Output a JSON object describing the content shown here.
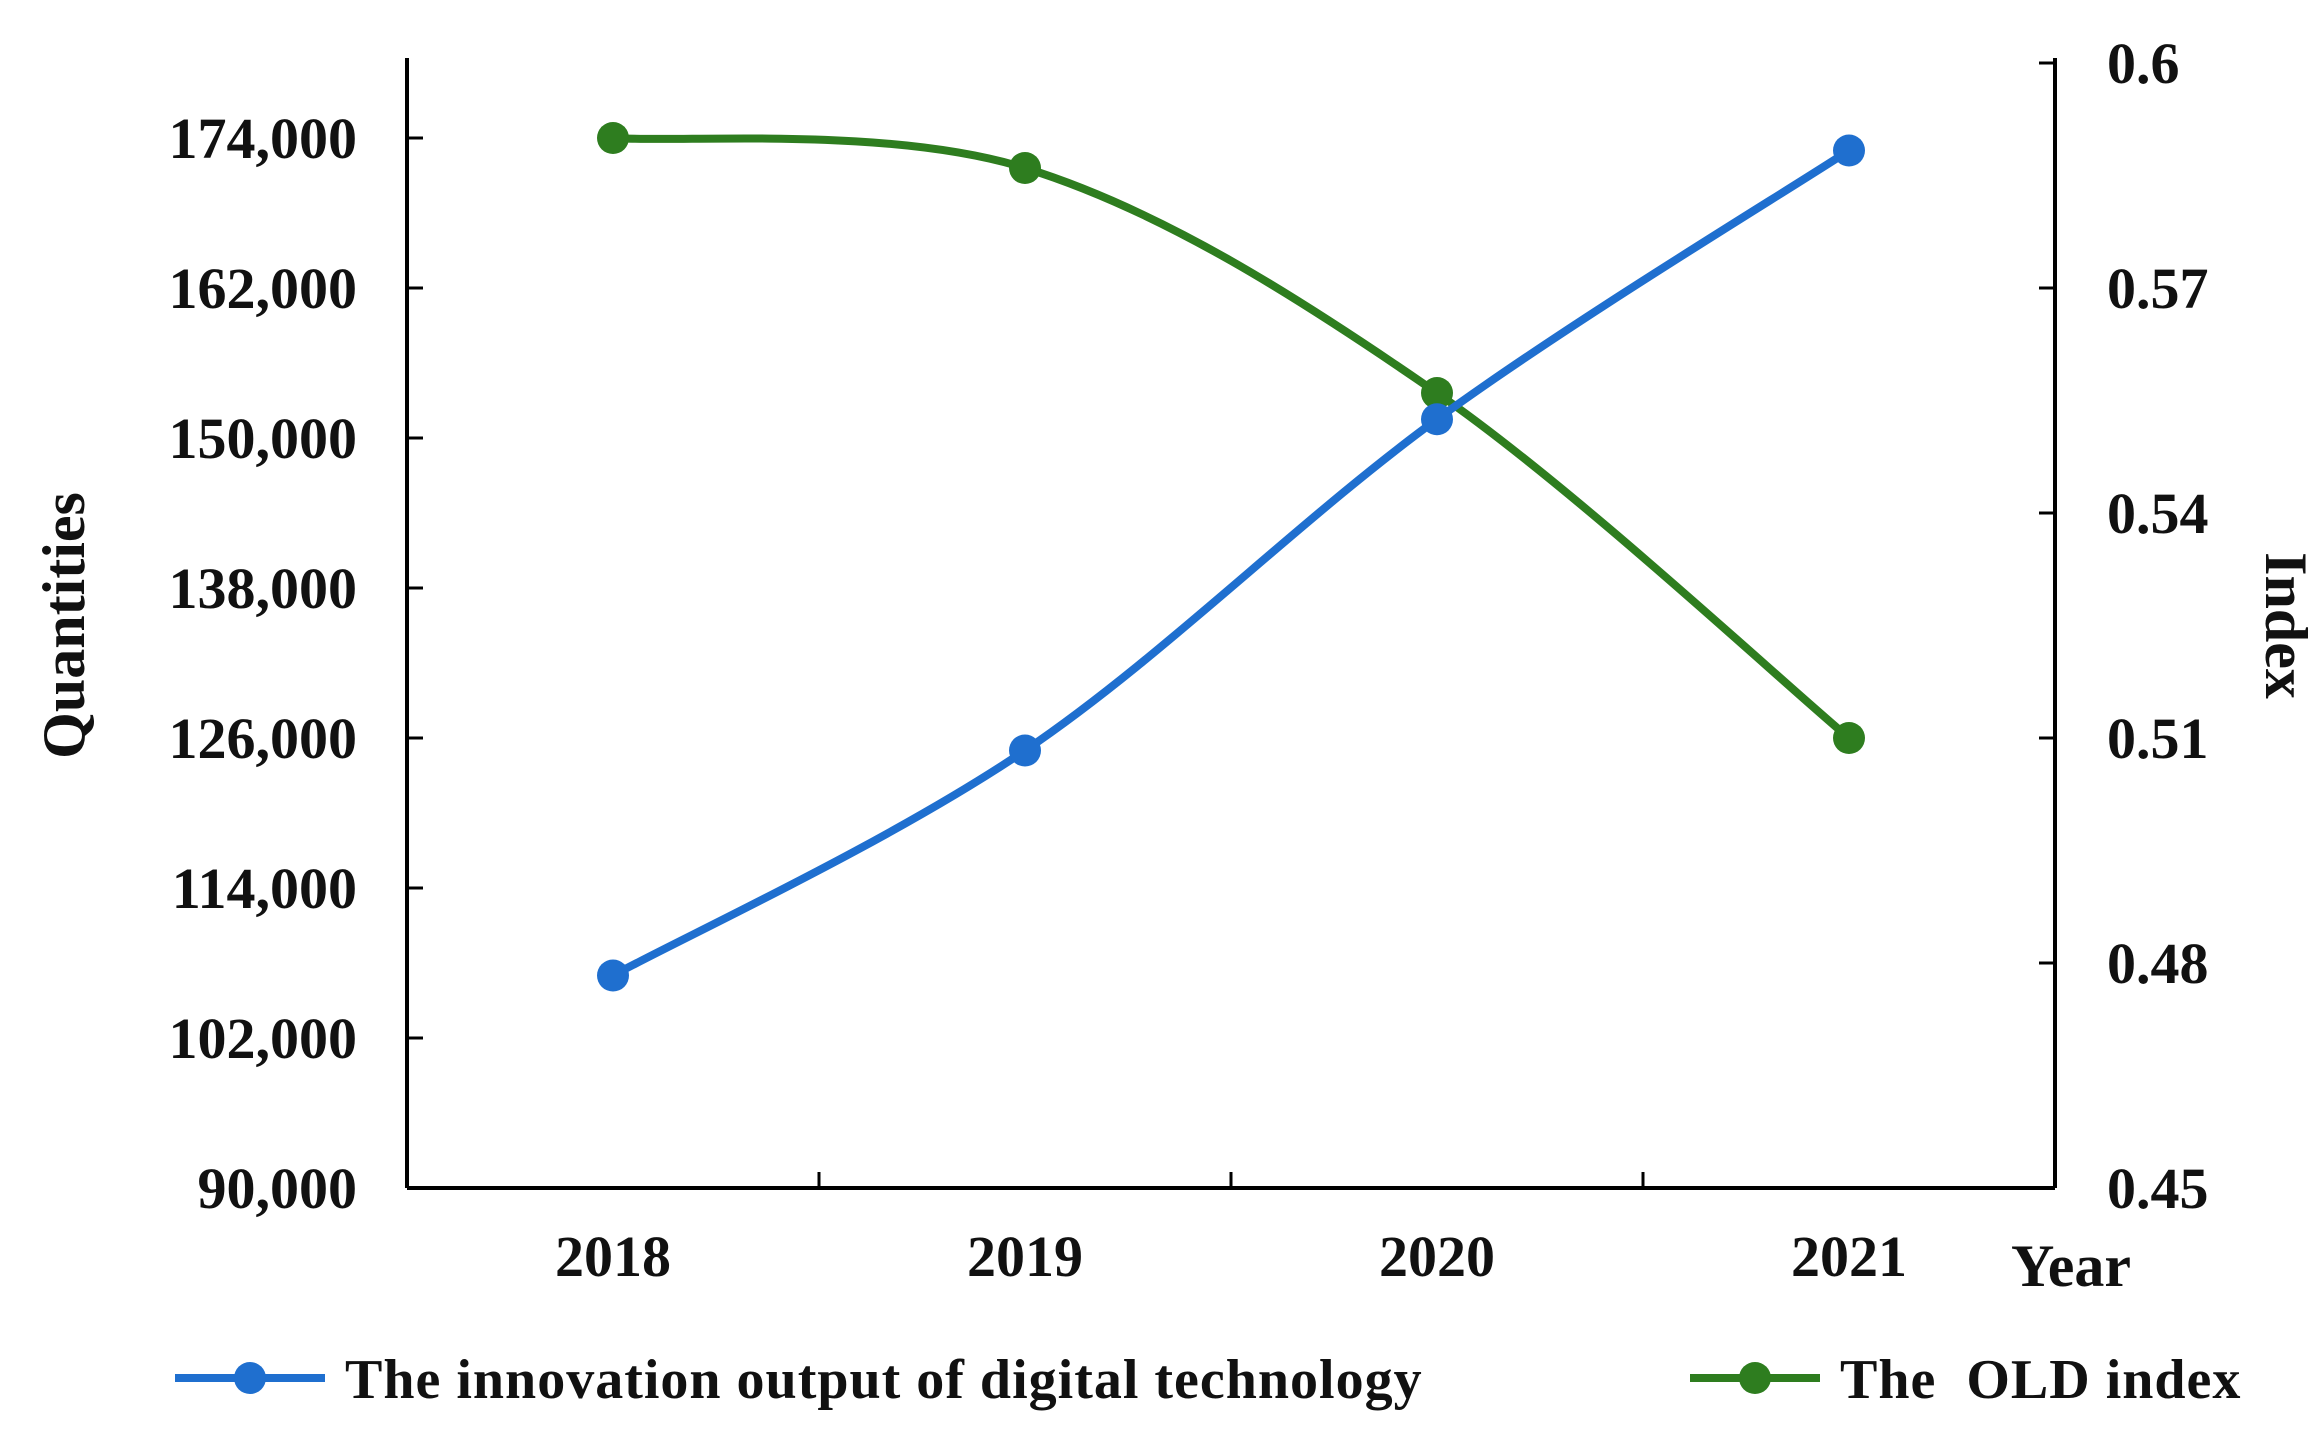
{
  "chart_data": {
    "type": "line",
    "title": "",
    "x_label": "Year",
    "y_label_left": "Quantities",
    "y_label_right": "Index",
    "categories": [
      "2018",
      "2019",
      "2020",
      "2021"
    ],
    "y_left": {
      "range": [
        90000,
        180000
      ],
      "ticks": [
        90000,
        102000,
        114000,
        126000,
        138000,
        150000,
        162000,
        174000
      ],
      "tick_labels": [
        "90,000",
        "102,000",
        "114,000",
        "126,000",
        "138,000",
        "150,000",
        "162,000",
        "174,000"
      ]
    },
    "y_right": {
      "range": [
        0.45,
        0.6
      ],
      "ticks": [
        0.45,
        0.48,
        0.51,
        0.54,
        0.57,
        0.6
      ],
      "tick_labels": [
        "0.45",
        "0.48",
        "0.51",
        "0.54",
        "0.57",
        "0.6"
      ]
    },
    "series": [
      {
        "name": "The innovation output of digital technology",
        "axis": "left",
        "color": "#1f6fcf",
        "values": [
          107000,
          125000,
          151500,
          173000
        ]
      },
      {
        "name": "The  OLD index",
        "axis": "right",
        "color": "#2e7d1f",
        "values": [
          0.59,
          0.586,
          0.556,
          0.51
        ]
      }
    ],
    "grid": false,
    "legend_position": "bottom"
  }
}
